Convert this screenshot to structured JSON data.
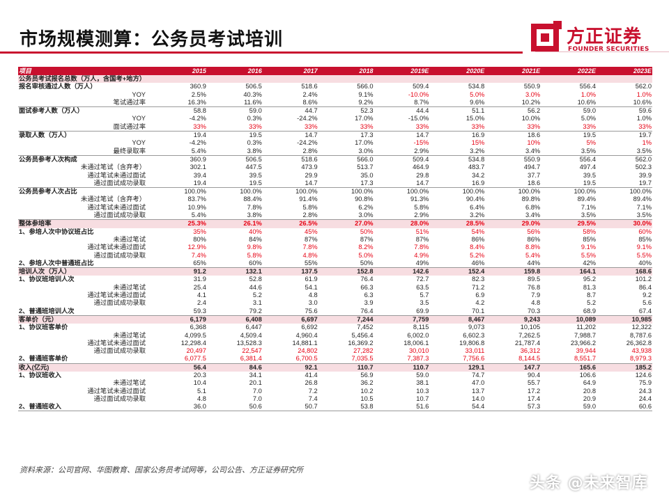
{
  "page": {
    "title": "市场规模测算：公务员考试培训",
    "brand": "方正证券",
    "brand_en": "FOUNDER SECURITIES",
    "source": "资料来源：公司官网、华图教育、国家公务员考试网等，公司公告、方正证券研究所",
    "watermark": "头条 @未来智库"
  },
  "colors": {
    "brand_red": "#c8102e",
    "highlight_red": "#e60012",
    "group_bg": "#f7dde1"
  },
  "table": {
    "header": [
      "项目",
      "2015",
      "2016",
      "2017",
      "2018",
      "2019E",
      "2020E",
      "2021E",
      "2022E",
      "2023E"
    ],
    "rows": [
      {
        "label": "公务员考试报名总数（万人，含国考+地方）",
        "type": "group",
        "values": [
          "",
          "",
          "",
          "",
          "",
          "",
          "",
          "",
          ""
        ]
      },
      {
        "label": "报名审核通过人数（万人）",
        "type": "section",
        "values": [
          "360.9",
          "506.5",
          "518.6",
          "566.0",
          "509.4",
          "534.8",
          "550.9",
          "556.4",
          "562.0"
        ]
      },
      {
        "label": "YOY",
        "type": "sub",
        "values": [
          "2.5%",
          "40.3%",
          "2.4%",
          "9.1%",
          "-10.0%",
          "5.0%",
          "3.0%",
          "1.0%",
          "1.0%"
        ],
        "red": [
          4,
          5,
          6,
          7,
          8
        ]
      },
      {
        "label": "笔试通过率",
        "type": "sub",
        "values": [
          "16.3%",
          "11.6%",
          "8.6%",
          "9.2%",
          "8.7%",
          "9.6%",
          "10.2%",
          "10.6%",
          "10.6%"
        ],
        "border": true
      },
      {
        "label": "面试参考人数（万人）",
        "type": "section",
        "values": [
          "58.8",
          "59.0",
          "44.7",
          "52.3",
          "44.4",
          "51.1",
          "56.2",
          "59.0",
          "59.6"
        ]
      },
      {
        "label": "YOY",
        "type": "sub",
        "values": [
          "-4.2%",
          "0.3%",
          "-24.2%",
          "17.0%",
          "-15.0%",
          "15.0%",
          "10.0%",
          "5.0%",
          "1.0%"
        ]
      },
      {
        "label": "面试通过率",
        "type": "sub",
        "values": [
          "33%",
          "33%",
          "33%",
          "33%",
          "33%",
          "33%",
          "33%",
          "33%",
          "33%"
        ],
        "red": [
          0,
          1,
          2,
          3,
          4,
          5,
          6,
          7,
          8
        ],
        "border": true
      },
      {
        "label": "录取人数（万人）",
        "type": "section",
        "values": [
          "19.4",
          "19.5",
          "14.7",
          "17.3",
          "14.7",
          "16.9",
          "18.6",
          "19.5",
          "19.7"
        ]
      },
      {
        "label": "YOY",
        "type": "sub",
        "values": [
          "-4.2%",
          "0.3%",
          "-24.2%",
          "17.0%",
          "-15%",
          "15%",
          "10%",
          "5%",
          "1%"
        ],
        "red": [
          4,
          5,
          6,
          7,
          8
        ]
      },
      {
        "label": "最终录取率",
        "type": "sub",
        "values": [
          "5.4%",
          "3.8%",
          "2.8%",
          "3.0%",
          "2.9%",
          "3.2%",
          "3.4%",
          "3.5%",
          "3.5%"
        ],
        "border": true
      },
      {
        "label": "公务员参考人次构成",
        "type": "section",
        "values": [
          "360.9",
          "506.5",
          "518.6",
          "566.0",
          "509.4",
          "534.8",
          "550.9",
          "556.4",
          "562.0"
        ]
      },
      {
        "label": "未通过笔试（含弃考）",
        "type": "sub",
        "values": [
          "302.1",
          "447.5",
          "473.9",
          "513.7",
          "464.9",
          "483.7",
          "494.7",
          "497.4",
          "502.3"
        ]
      },
      {
        "label": "通过笔试未通过面试",
        "type": "sub",
        "values": [
          "39.4",
          "39.5",
          "29.9",
          "35.0",
          "29.8",
          "34.2",
          "37.7",
          "39.5",
          "39.9"
        ]
      },
      {
        "label": "通过面试成功录取",
        "type": "sub",
        "values": [
          "19.4",
          "19.5",
          "14.7",
          "17.3",
          "14.7",
          "16.9",
          "18.6",
          "19.5",
          "19.7"
        ],
        "border": true
      },
      {
        "label": "公务员参考人次占比",
        "type": "section",
        "values": [
          "100.0%",
          "100.0%",
          "100.0%",
          "100.0%",
          "100.0%",
          "100.0%",
          "100.0%",
          "100.0%",
          "100.0%"
        ]
      },
      {
        "label": "未通过笔试（含弃考）",
        "type": "sub",
        "values": [
          "83.7%",
          "88.4%",
          "91.4%",
          "90.8%",
          "91.3%",
          "90.4%",
          "89.8%",
          "89.4%",
          "89.4%"
        ]
      },
      {
        "label": "通过笔试未通过面试",
        "type": "sub",
        "values": [
          "10.9%",
          "7.8%",
          "5.8%",
          "6.2%",
          "5.8%",
          "6.4%",
          "6.8%",
          "7.1%",
          "7.1%"
        ]
      },
      {
        "label": "通过面试成功录取",
        "type": "sub",
        "values": [
          "5.4%",
          "3.8%",
          "2.8%",
          "3.0%",
          "2.9%",
          "3.2%",
          "3.4%",
          "3.5%",
          "3.5%"
        ],
        "border": true
      },
      {
        "label": "整体参培率",
        "type": "group",
        "values": [
          "25.3%",
          "26.1%",
          "26.5%",
          "27.0%",
          "28.0%",
          "28.5%",
          "29.0%",
          "29.5%",
          "30.0%"
        ],
        "red": [
          0,
          1,
          2,
          3,
          4,
          5,
          6,
          7,
          8
        ]
      },
      {
        "label": "1、参培人次中协议班占比",
        "type": "section",
        "values": [
          "35%",
          "40%",
          "45%",
          "50%",
          "51%",
          "54%",
          "56%",
          "58%",
          "60%"
        ],
        "red": [
          0,
          1,
          2,
          3,
          4,
          5,
          6,
          7,
          8
        ]
      },
      {
        "label": "未通过笔试",
        "type": "sub",
        "values": [
          "80%",
          "84%",
          "87%",
          "87%",
          "87%",
          "86%",
          "86%",
          "85%",
          "85%"
        ]
      },
      {
        "label": "通过笔试未通过面试",
        "type": "sub",
        "values": [
          "12.9%",
          "9.8%",
          "7.8%",
          "8.2%",
          "7.8%",
          "8.4%",
          "8.8%",
          "9.1%",
          "9.1%"
        ],
        "red": [
          0,
          1,
          2,
          3,
          4,
          5,
          6,
          7,
          8
        ]
      },
      {
        "label": "通过面试成功录取",
        "type": "sub",
        "values": [
          "7.4%",
          "5.8%",
          "4.8%",
          "5.0%",
          "4.9%",
          "5.2%",
          "5.4%",
          "5.5%",
          "5.5%"
        ],
        "red": [
          0,
          1,
          2,
          3,
          4,
          5,
          6,
          7,
          8
        ]
      },
      {
        "label": "2、参培人次中普通班占比",
        "type": "section",
        "values": [
          "65%",
          "60%",
          "55%",
          "50%",
          "49%",
          "46%",
          "44%",
          "42%",
          "40%"
        ],
        "border": true
      },
      {
        "label": "培训人次（万人）",
        "type": "group",
        "values": [
          "91.2",
          "132.1",
          "137.5",
          "152.8",
          "142.6",
          "152.4",
          "159.8",
          "164.1",
          "168.6"
        ]
      },
      {
        "label": "1、协议班培训人次",
        "type": "section",
        "values": [
          "31.9",
          "52.8",
          "61.9",
          "76.4",
          "72.7",
          "82.3",
          "89.5",
          "95.2",
          "101.2"
        ]
      },
      {
        "label": "未通过笔试",
        "type": "sub",
        "values": [
          "25.4",
          "44.6",
          "54.1",
          "66.3",
          "63.5",
          "71.2",
          "76.8",
          "81.3",
          "86.4"
        ]
      },
      {
        "label": "通过笔试未通过面试",
        "type": "sub",
        "values": [
          "4.1",
          "5.2",
          "4.8",
          "6.3",
          "5.7",
          "6.9",
          "7.9",
          "8.7",
          "9.2"
        ]
      },
      {
        "label": "通过面试成功录取",
        "type": "sub",
        "values": [
          "2.4",
          "3.1",
          "3.0",
          "3.9",
          "3.5",
          "4.2",
          "4.8",
          "5.2",
          "5.6"
        ]
      },
      {
        "label": "2、普通班培训人次",
        "type": "section",
        "values": [
          "59.3",
          "79.2",
          "75.6",
          "76.4",
          "69.9",
          "70.1",
          "70.3",
          "68.9",
          "67.4"
        ],
        "border": true
      },
      {
        "label": "客单价（元）",
        "type": "group",
        "values": [
          "6,179",
          "6,408",
          "6,697",
          "7,244",
          "7,759",
          "8,467",
          "9,243",
          "10,089",
          "10,985"
        ]
      },
      {
        "label": "1、协议班客单价",
        "type": "section",
        "values": [
          "6,368",
          "6,447",
          "6,692",
          "7,452",
          "8,115",
          "9,073",
          "10,105",
          "11,202",
          "12,322"
        ]
      },
      {
        "label": "未通过笔试",
        "type": "sub",
        "values": [
          "4,099.5",
          "4,509.4",
          "4,960.4",
          "5,456.4",
          "6,002.0",
          "6,602.3",
          "7,262.5",
          "7,988.7",
          "8,787.6"
        ]
      },
      {
        "label": "通过笔试未通过面试",
        "type": "sub",
        "values": [
          "12,298.4",
          "13,528.3",
          "14,881.1",
          "16,369.2",
          "18,006.1",
          "19,806.8",
          "21,787.4",
          "23,966.2",
          "26,362.8"
        ]
      },
      {
        "label": "通过面试成功录取",
        "type": "sub",
        "values": [
          "20,497",
          "22,547",
          "24,802",
          "27,282",
          "30,010",
          "33,011",
          "36,312",
          "39,944",
          "43,938"
        ],
        "red": [
          0,
          1,
          2,
          3,
          4,
          5,
          6,
          7,
          8
        ]
      },
      {
        "label": "2、普通班客单价",
        "type": "section",
        "values": [
          "6,077.5",
          "6,381.4",
          "6,700.5",
          "7,035.5",
          "7,387.3",
          "7,756.6",
          "8,144.5",
          "8,551.7",
          "8,979.3"
        ],
        "red": [
          0,
          1,
          2,
          3,
          4,
          5,
          6,
          7,
          8
        ],
        "border": true
      },
      {
        "label": "收入(亿元)",
        "type": "group",
        "bold": true,
        "values": [
          "56.4",
          "84.6",
          "92.1",
          "110.7",
          "110.7",
          "129.1",
          "147.7",
          "165.6",
          "185.2"
        ]
      },
      {
        "label": "1、协议班收入",
        "type": "section",
        "values": [
          "20.3",
          "34.1",
          "41.4",
          "56.9",
          "59.0",
          "74.7",
          "90.4",
          "106.6",
          "124.6"
        ]
      },
      {
        "label": "未通过笔试",
        "type": "sub",
        "values": [
          "10.4",
          "20.1",
          "26.8",
          "36.2",
          "38.1",
          "47.0",
          "55.7",
          "64.9",
          "75.9"
        ]
      },
      {
        "label": "通过笔试未通过面试",
        "type": "sub",
        "values": [
          "5.1",
          "7.0",
          "7.2",
          "10.2",
          "10.3",
          "13.7",
          "17.2",
          "20.8",
          "24.3"
        ]
      },
      {
        "label": "通过面试成功录取",
        "type": "sub",
        "values": [
          "4.8",
          "7.0",
          "7.4",
          "10.5",
          "10.7",
          "14.0",
          "17.4",
          "20.9",
          "24.4"
        ]
      },
      {
        "label": "2、普通班收入",
        "type": "section",
        "values": [
          "36.0",
          "50.6",
          "50.7",
          "53.8",
          "51.6",
          "54.4",
          "57.3",
          "59.0",
          "60.6"
        ],
        "border": true
      }
    ]
  }
}
